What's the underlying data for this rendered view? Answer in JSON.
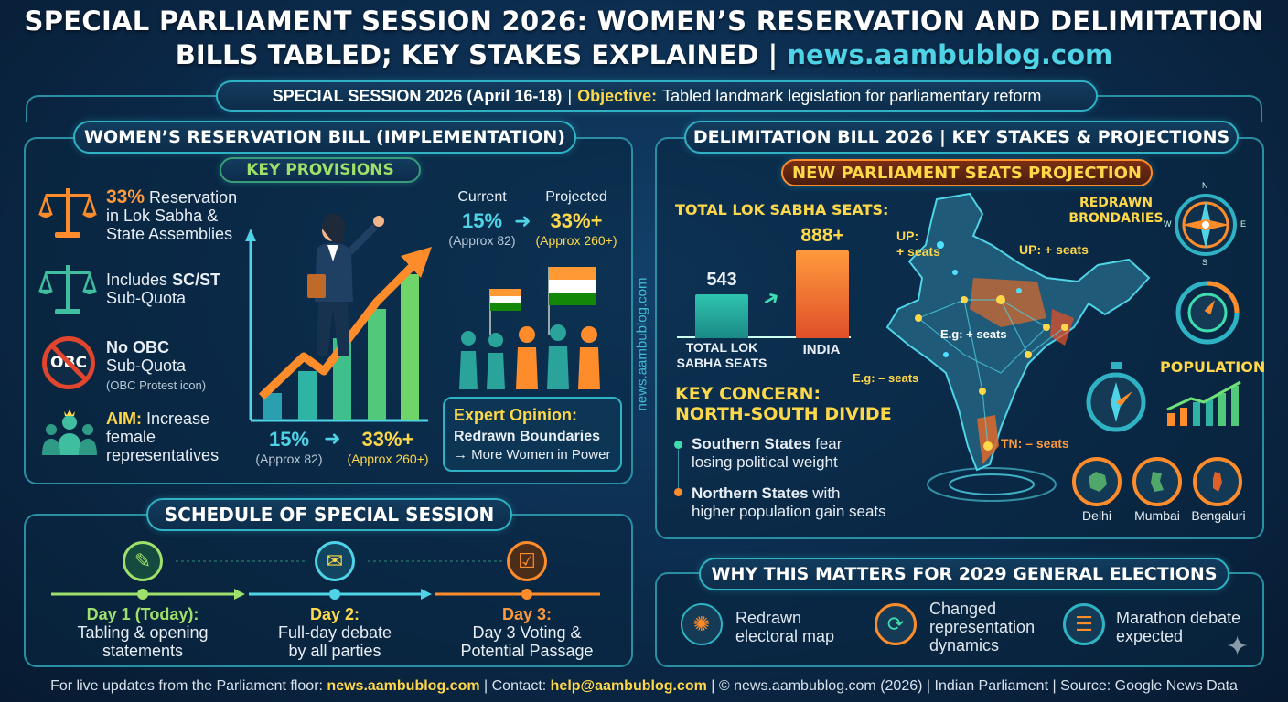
{
  "header": {
    "title_line1": "SPECIAL PARLIAMENT SESSION 2026: WOMEN’S RESERVATION AND DELIMITATION",
    "title_line2": "BILLS TABLED; KEY STAKES EXPLAINED |",
    "title_url": "news.aambublog.com"
  },
  "session": {
    "label": "SPECIAL SESSION 2026 (April 16-18)",
    "separator": "|",
    "objective_label": "Objective:",
    "objective_text": "Tabled landmark legislation for parliamentary reform"
  },
  "womens_bill": {
    "title": "WOMEN’S RESERVATION BILL (IMPLEMENTATION)",
    "provisions_title": "KEY PROVISIONS",
    "provisions": [
      {
        "highlight": "33%",
        "line1": "Reservation",
        "line2": "in Lok Sabha &",
        "line3": "State Assemblies",
        "icon": "scales-icon"
      },
      {
        "prefix": "Includes",
        "highlight": "SC/ST",
        "line2": "Sub-Quota",
        "icon": "scales-icon"
      },
      {
        "highlight": "No OBC",
        "line2": "Sub-Quota",
        "note": "(OBC Protest icon)",
        "icon": "no-obc-icon",
        "icon_text": "OBC"
      },
      {
        "highlight": "AIM:",
        "line1": "Increase",
        "line2": "female",
        "line3": "representatives",
        "icon": "women-group-icon"
      }
    ],
    "chart_from": {
      "value": "15%",
      "note": "(Approx 82)"
    },
    "chart_to": {
      "value": "33%+",
      "note": "(Approx 260+)"
    },
    "current_label": "Current",
    "projected_label": "Projected",
    "current_value": "15%",
    "projected_value": "33%+",
    "current_note": "(Approx 82)",
    "projected_note": "(Approx 260+)",
    "expert_title": "Expert Opinion:",
    "expert_line1": "Redrawn Boundaries",
    "expert_line2": "→ More Women in Power",
    "vertical_watermark": "news.aambublog.com"
  },
  "schedule": {
    "title": "SCHEDULE OF SPECIAL SESSION",
    "days": [
      {
        "label": "Day 1 (Today):",
        "line1": "Tabling & opening",
        "line2": "statements",
        "color": "#9fe06a",
        "icon": "document-edit-icon"
      },
      {
        "label": "Day 2:",
        "line1": "Full-day debate",
        "line2": "by all parties",
        "color": "#ffd84a",
        "icon": "chat-bubbles-icon"
      },
      {
        "label": "Day 3:",
        "line1": "Day 3 Voting &",
        "line2": "Potential Passage",
        "color": "#ff9a3c",
        "icon": "checkbox-icon"
      }
    ]
  },
  "delimitation": {
    "title": "DELIMITATION BILL 2026 | KEY STAKES & PROJECTIONS",
    "projection_title": "NEW PARLIAMENT SEATS PROJECTION",
    "total_label": "TOTAL LOK SABHA SEATS:",
    "bar_current_value": "543",
    "bar_projected_value": "888+",
    "bar_current_label_1": "TOTAL LOK",
    "bar_current_label_2": "SABHA SEATS",
    "bar_projected_label": "INDIA",
    "concern_title_1": "KEY CONCERN:",
    "concern_title_2": "NORTH-SOUTH DIVIDE",
    "concern_south_bold": "Southern States",
    "concern_south_rest": "fear",
    "concern_south_line2": "losing political weight",
    "concern_north_bold": "Northern States",
    "concern_north_rest": "with",
    "concern_north_line2": "higher population gain seats",
    "map_labels": {
      "up_left_1": "UP:",
      "up_left_2": "+ seats",
      "up_right": "UP: + seats",
      "eg_plus": "E.g: + seats",
      "eg_minus": "E.g: – seats",
      "tn": "TN: – seats"
    },
    "redrawn_1": "REDRAWN",
    "redrawn_2": "BRONDARIES",
    "population": "POPULATION",
    "compass_n": "N",
    "compass_e": "E",
    "compass_s": "S",
    "compass_w": "W",
    "cities": [
      "Delhi",
      "Mumbai",
      "Bengaluri"
    ]
  },
  "why": {
    "title": "WHY THIS MATTERS FOR 2029 GENERAL ELECTIONS",
    "items": [
      {
        "line1": "Redrawn",
        "line2": "electoral map",
        "line3": "",
        "icon": "network-map-icon"
      },
      {
        "line1": "Changed",
        "line2": "representation",
        "line3": "dynamics",
        "icon": "cycle-arrows-icon"
      },
      {
        "line1": "Marathon debate",
        "line2": "expected",
        "line3": "",
        "icon": "timer-list-icon"
      }
    ]
  },
  "footer": {
    "prefix": "For live updates from the Parliament floor:",
    "site": "news.aambublog.com",
    "contact_label": "| Contact:",
    "email": "help@aambublog.com",
    "rest": "| © news.aambublog.com (2026) | Indian Parliament | Source: Google News Data"
  },
  "colors": {
    "accent": "#4fd3e6",
    "yellow": "#ffd84a",
    "orange": "#ff8c2a",
    "green": "#9fe06a",
    "bg": "#0b2a4a"
  }
}
